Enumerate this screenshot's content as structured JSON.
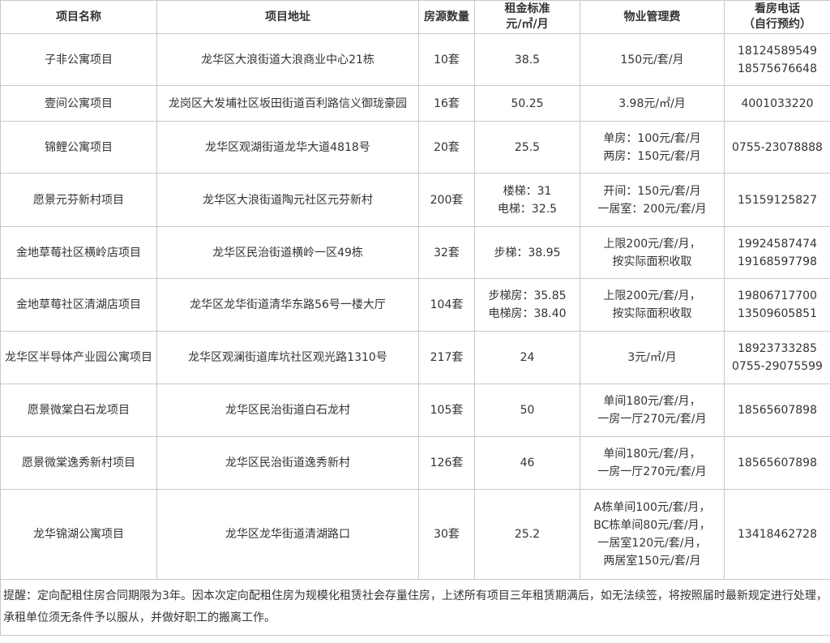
{
  "headers": [
    "项目名称",
    "项目地址",
    "房源数量",
    [
      "租金标准",
      "元/㎡/月"
    ],
    "物业管理费",
    [
      "看房电话",
      "（自行预约）"
    ]
  ],
  "rows": [
    {
      "name": "子非公寓项目",
      "address": "龙华区大浪街道大浪商业中心21栋",
      "count": "10套",
      "rent": [
        "38.5"
      ],
      "fee": [
        "150元/套/月"
      ],
      "phone": [
        "18124589549",
        "18575676648"
      ]
    },
    {
      "name": "壹间公寓项目",
      "address": "龙岗区大发埔社区坂田街道百利路信义御珑豪园",
      "count": "16套",
      "rent": [
        "50.25"
      ],
      "fee": [
        "3.98元/㎡/月"
      ],
      "phone": [
        "4001033220"
      ]
    },
    {
      "name": "锦鲤公寓项目",
      "address": "龙华区观湖街道龙华大道4818号",
      "count": "20套",
      "rent": [
        "25.5"
      ],
      "fee": [
        "单房：100元/套/月",
        "两房：150元/套/月"
      ],
      "phone": [
        "0755-23078888"
      ]
    },
    {
      "name": "愿景元芬新村项目",
      "address": "龙华区大浪街道陶元社区元芬新村",
      "count": "200套",
      "rent": [
        "楼梯：31",
        "电梯：32.5"
      ],
      "fee": [
        "开间：150元/套/月",
        "一居室：200元/套/月"
      ],
      "phone": [
        "15159125827"
      ]
    },
    {
      "name": "金地草莓社区横岭店项目",
      "address": "龙华区民治街道横岭一区49栋",
      "count": "32套",
      "rent": [
        "步梯：38.95"
      ],
      "fee": [
        "上限200元/套/月，",
        "按实际面积收取"
      ],
      "phone": [
        "19924587474",
        "19168597798"
      ]
    },
    {
      "name": "金地草莓社区清湖店项目",
      "address": "龙华区龙华街道清华东路56号一楼大厅",
      "count": "104套",
      "rent": [
        "步梯房：35.85",
        "电梯房：38.40"
      ],
      "fee": [
        "上限200元/套/月，",
        "按实际面积收取"
      ],
      "phone": [
        "19806717700",
        "13509605851"
      ]
    },
    {
      "name": "龙华区半导体产业园公寓项目",
      "address": "龙华区观澜街道库坑社区观光路1310号",
      "count": "217套",
      "rent": [
        "24"
      ],
      "fee": [
        "3元/㎡/月"
      ],
      "phone": [
        "18923733285",
        "0755-29075599"
      ]
    },
    {
      "name": "愿景微棠白石龙项目",
      "address": "龙华区民治街道白石龙村",
      "count": "105套",
      "rent": [
        "50"
      ],
      "fee": [
        "单间180元/套/月，",
        "一房一厅270元/套/月"
      ],
      "phone": [
        "18565607898"
      ]
    },
    {
      "name": "愿景微棠逸秀新村项目",
      "address": "龙华区民治街道逸秀新村",
      "count": "126套",
      "rent": [
        "46"
      ],
      "fee": [
        "单间180元/套/月，",
        "一房一厅270元/套/月"
      ],
      "phone": [
        "18565607898"
      ]
    },
    {
      "name": "龙华锦湖公寓项目",
      "address": "龙华区龙华街道清湖路口",
      "count": "30套",
      "rent": [
        "25.2"
      ],
      "fee": [
        "A栋单间100元/套/月，",
        "BC栋单间80元/套/月，",
        "一居室120元/套/月，",
        "两居室150元/套/月"
      ],
      "phone": [
        "13418462728"
      ]
    }
  ],
  "note": "提醒：定向配租住房合同期限为3年。因本次定向配租住房为规模化租赁社会存量住房，上述所有项目三年租赁期满后，如无法续签，将按照届时最新规定进行处理，承租单位须无条件予以服从，并做好职工的搬离工作。"
}
